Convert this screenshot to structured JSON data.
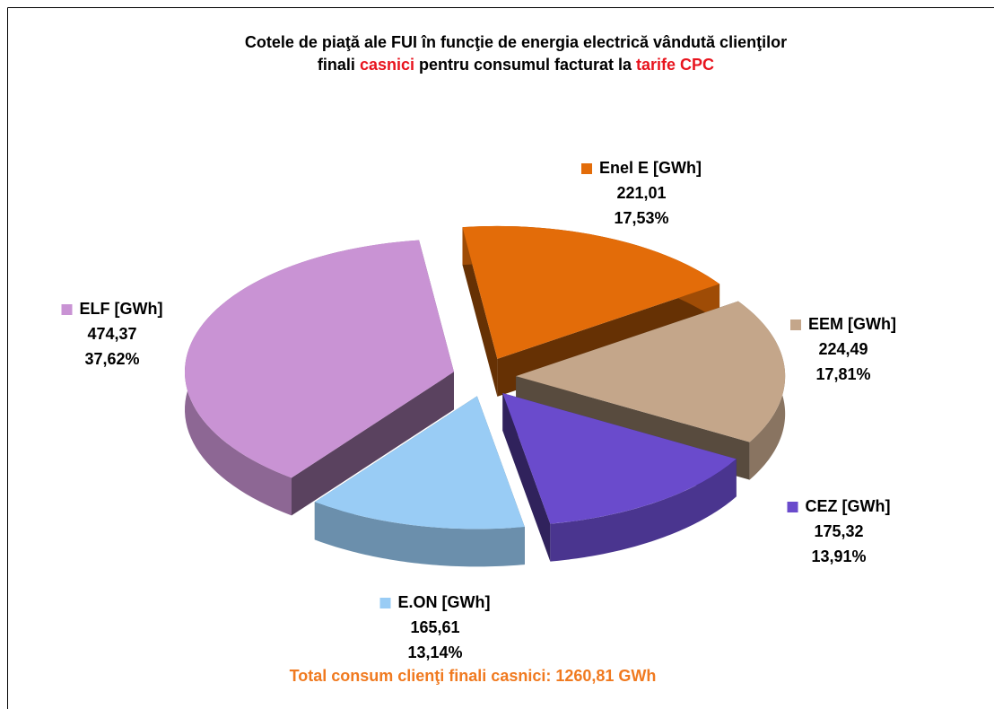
{
  "chart_data": {
    "type": "pie",
    "title_lines": [
      [
        {
          "text": "Cotele de piaţă ale FUI  în funcţie de energia electrică vândută clienţilor",
          "color": "#000000"
        }
      ],
      [
        {
          "text": "finali ",
          "color": "#000000"
        },
        {
          "text": "casnici",
          "color": "#e8141e"
        },
        {
          "text": " pentru consumul facturat  la ",
          "color": "#000000"
        },
        {
          "text": "tarife  CPC",
          "color": "#e8141e"
        }
      ]
    ],
    "series": [
      {
        "name": "Enel E  [GWh]",
        "color": "#e36c09",
        "values": [
          221.01
        ],
        "value_labels": [
          "221,01"
        ],
        "percentages": [
          17.53
        ],
        "percentage_labels": [
          "17,53%"
        ]
      },
      {
        "name": "EEM [GWh]",
        "color": "#c4a68a",
        "values": [
          224.49
        ],
        "value_labels": [
          "224,49"
        ],
        "percentages": [
          17.81
        ],
        "percentage_labels": [
          "17,81%"
        ]
      },
      {
        "name": "CEZ [GWh]",
        "color": "#6a4bcc",
        "values": [
          175.32
        ],
        "value_labels": [
          "175,32"
        ],
        "percentages": [
          13.91
        ],
        "percentage_labels": [
          "13,91%"
        ]
      },
      {
        "name": "E.ON  [GWh]",
        "color": "#99ccf5",
        "values": [
          165.61
        ],
        "value_labels": [
          "165,61"
        ],
        "percentages": [
          13.14
        ],
        "percentage_labels": [
          "13,14%"
        ]
      },
      {
        "name": "ELF [GWh]",
        "color": "#c993d4",
        "values": [
          474.37
        ],
        "value_labels": [
          "474,37"
        ],
        "percentages": [
          37.62
        ],
        "percentage_labels": [
          "37,62%"
        ]
      }
    ],
    "annotation": {
      "text": "Total consum clienţi finali casnici: 1260,81 GWh",
      "color": "#f07a20"
    }
  }
}
